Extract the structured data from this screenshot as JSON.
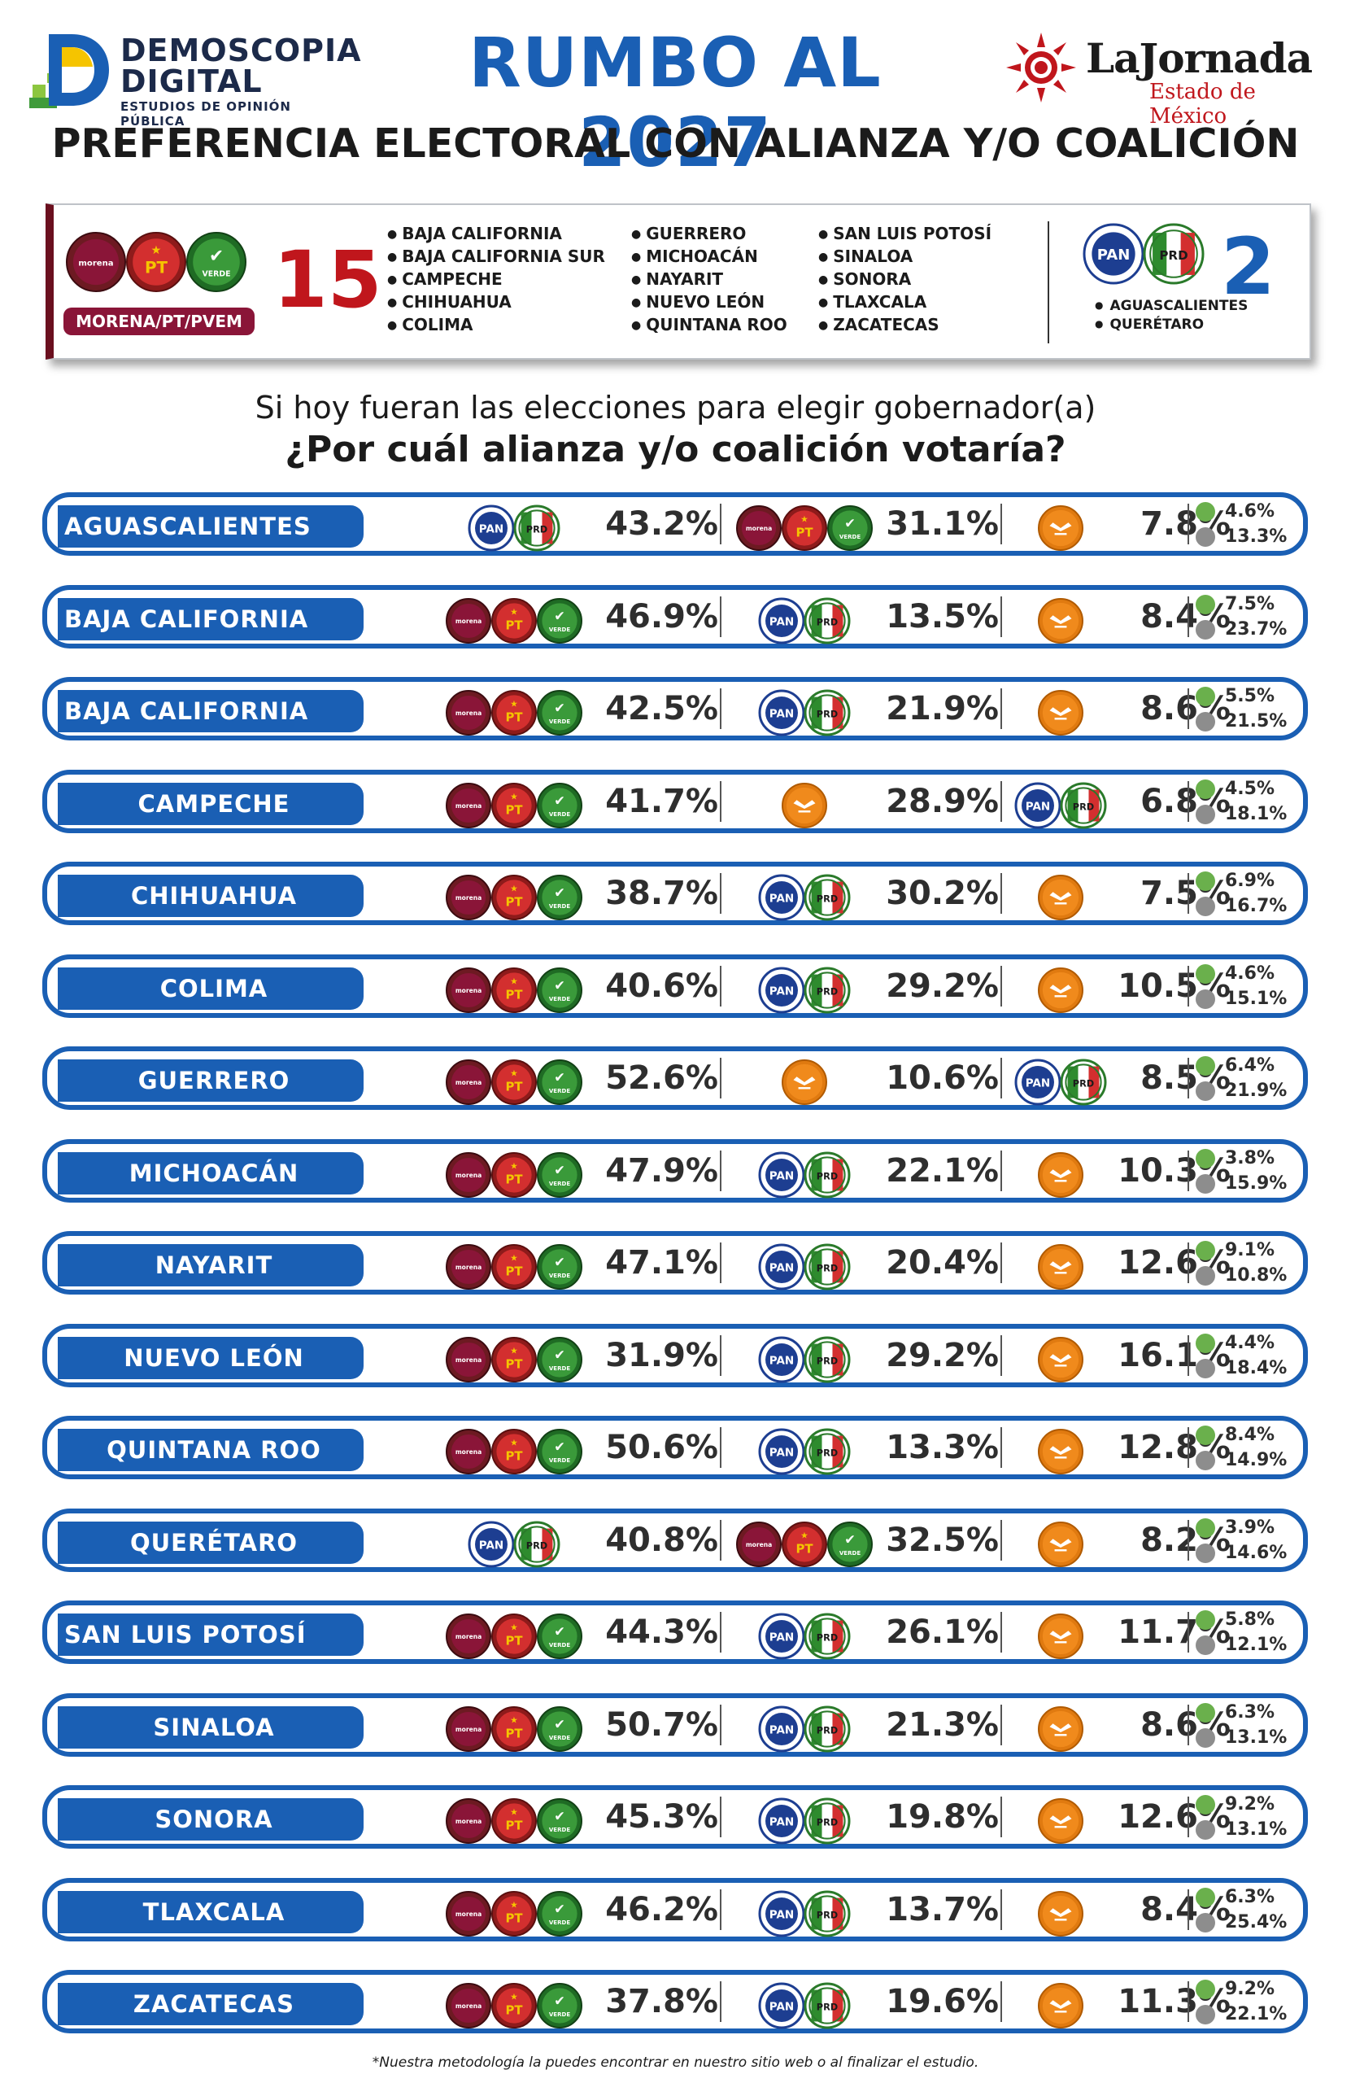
{
  "header": {
    "brand_line1": "DEMOSCOPIA",
    "brand_line2": "DIGITAL",
    "brand_tagline": "ESTUDIOS DE OPINIÓN PÚBLICA",
    "title": "RUMBO AL 2027",
    "partner_name": "LaJornada",
    "partner_sub": "Estado de México",
    "subtitle": "PREFERENCIA ELECTORAL CON ALIANZA Y/O COALICIÓN"
  },
  "summary": {
    "coalition_label": "MORENA/PT/PVEM",
    "coalition_count": "15",
    "coalition_states_col1": [
      "BAJA CALIFORNIA",
      "BAJA CALIFORNIA SUR",
      "CAMPECHE",
      "CHIHUAHUA",
      "COLIMA"
    ],
    "coalition_states_col2": [
      "GUERRERO",
      "MICHOACÁN",
      "NAYARIT",
      "NUEVO LEÓN",
      "QUINTANA ROO"
    ],
    "coalition_states_col3": [
      "SAN LUIS POTOSÍ",
      "SINALOA",
      "SONORA",
      "TLAXCALA",
      "ZACATECAS"
    ],
    "opposition_count": "2",
    "opposition_states": [
      "AGUASCALIENTES",
      "QUERÉTARO"
    ]
  },
  "question": {
    "line1": "Si hoy fueran las elecciones para elegir gobernador(a)",
    "line2": "¿Por cuál alianza y/o coalición votaría?"
  },
  "party_labels": {
    "morena": "morena",
    "pt": "PT",
    "verde": "VERDE",
    "pan": "PAN",
    "prd": "PRD"
  },
  "colors": {
    "accent_blue": "#1a5fb4",
    "morena": "#8a1538",
    "pt": "#d32f2f",
    "verde": "#3a9a3a",
    "mc": "#f08a1c",
    "pan": "#1d3e91",
    "prd_yellow": "#f5c400",
    "pri_red": "#d32f2f"
  },
  "rows": [
    {
      "state": "AGUASCALIENTES",
      "s1": {
        "party": "panpri",
        "pct": "43.2%"
      },
      "s2": {
        "party": "mpv",
        "pct": "31.1%"
      },
      "s3": {
        "party": "mc",
        "pct": "7.8%"
      },
      "other": "4.6%",
      "undecided": "13.3%"
    },
    {
      "state": "BAJA CALIFORNIA",
      "s1": {
        "party": "mpv",
        "pct": "46.9%"
      },
      "s2": {
        "party": "panpri",
        "pct": "13.5%"
      },
      "s3": {
        "party": "mc",
        "pct": "8.4%"
      },
      "other": "7.5%",
      "undecided": "23.7%"
    },
    {
      "state": "BAJA CALIFORNIA SUR",
      "s1": {
        "party": "mpv",
        "pct": "42.5%"
      },
      "s2": {
        "party": "panpri",
        "pct": "21.9%"
      },
      "s3": {
        "party": "mc",
        "pct": "8.6%"
      },
      "other": "5.5%",
      "undecided": "21.5%"
    },
    {
      "state": "CAMPECHE",
      "s1": {
        "party": "mpv",
        "pct": "41.7%"
      },
      "s2": {
        "party": "mc",
        "pct": "28.9%"
      },
      "s3": {
        "party": "panpri",
        "pct": "6.8%"
      },
      "other": "4.5%",
      "undecided": "18.1%"
    },
    {
      "state": "CHIHUAHUA",
      "s1": {
        "party": "mpv",
        "pct": "38.7%"
      },
      "s2": {
        "party": "panpri",
        "pct": "30.2%"
      },
      "s3": {
        "party": "mc",
        "pct": "7.5%"
      },
      "other": "6.9%",
      "undecided": "16.7%"
    },
    {
      "state": "COLIMA",
      "s1": {
        "party": "mpv",
        "pct": "40.6%"
      },
      "s2": {
        "party": "panpri",
        "pct": "29.2%"
      },
      "s3": {
        "party": "mc",
        "pct": "10.5%"
      },
      "other": "4.6%",
      "undecided": "15.1%"
    },
    {
      "state": "GUERRERO",
      "s1": {
        "party": "mpv",
        "pct": "52.6%"
      },
      "s2": {
        "party": "mc",
        "pct": "10.6%"
      },
      "s3": {
        "party": "panpri",
        "pct": "8.5%"
      },
      "other": "6.4%",
      "undecided": "21.9%"
    },
    {
      "state": "MICHOACÁN",
      "s1": {
        "party": "mpv",
        "pct": "47.9%"
      },
      "s2": {
        "party": "panpri",
        "pct": "22.1%"
      },
      "s3": {
        "party": "mc",
        "pct": "10.3%"
      },
      "other": "3.8%",
      "undecided": "15.9%"
    },
    {
      "state": "NAYARIT",
      "s1": {
        "party": "mpv",
        "pct": "47.1%"
      },
      "s2": {
        "party": "panpri",
        "pct": "20.4%"
      },
      "s3": {
        "party": "mc",
        "pct": "12.6%"
      },
      "other": "9.1%",
      "undecided": "10.8%"
    },
    {
      "state": "NUEVO LEÓN",
      "s1": {
        "party": "mpv",
        "pct": "31.9%"
      },
      "s2": {
        "party": "panpri",
        "pct": "29.2%"
      },
      "s3": {
        "party": "mc",
        "pct": "16.1%"
      },
      "other": "4.4%",
      "undecided": "18.4%"
    },
    {
      "state": "QUINTANA ROO",
      "s1": {
        "party": "mpv",
        "pct": "50.6%"
      },
      "s2": {
        "party": "panpri",
        "pct": "13.3%"
      },
      "s3": {
        "party": "mc",
        "pct": "12.8%"
      },
      "other": "8.4%",
      "undecided": "14.9%"
    },
    {
      "state": "QUERÉTARO",
      "s1": {
        "party": "panpri",
        "pct": "40.8%"
      },
      "s2": {
        "party": "mpv",
        "pct": "32.5%"
      },
      "s3": {
        "party": "mc",
        "pct": "8.2%"
      },
      "other": "3.9%",
      "undecided": "14.6%"
    },
    {
      "state": "SAN LUIS POTOSÍ",
      "s1": {
        "party": "mpv",
        "pct": "44.3%"
      },
      "s2": {
        "party": "panpri",
        "pct": "26.1%"
      },
      "s3": {
        "party": "mc",
        "pct": "11.7%"
      },
      "other": "5.8%",
      "undecided": "12.1%"
    },
    {
      "state": "SINALOA",
      "s1": {
        "party": "mpv",
        "pct": "50.7%"
      },
      "s2": {
        "party": "panpri",
        "pct": "21.3%"
      },
      "s3": {
        "party": "mc",
        "pct": "8.6%"
      },
      "other": "6.3%",
      "undecided": "13.1%"
    },
    {
      "state": "SONORA",
      "s1": {
        "party": "mpv",
        "pct": "45.3%"
      },
      "s2": {
        "party": "panpri",
        "pct": "19.8%"
      },
      "s3": {
        "party": "mc",
        "pct": "12.6%"
      },
      "other": "9.2%",
      "undecided": "13.1%"
    },
    {
      "state": "TLAXCALA",
      "s1": {
        "party": "mpv",
        "pct": "46.2%"
      },
      "s2": {
        "party": "panpri",
        "pct": "13.7%"
      },
      "s3": {
        "party": "mc",
        "pct": "8.4%"
      },
      "other": "6.3%",
      "undecided": "25.4%"
    },
    {
      "state": "ZACATECAS",
      "s1": {
        "party": "mpv",
        "pct": "37.8%"
      },
      "s2": {
        "party": "panpri",
        "pct": "19.6%"
      },
      "s3": {
        "party": "mc",
        "pct": "11.3%"
      },
      "other": "9.2%",
      "undecided": "22.1%"
    }
  ],
  "footnote": "*Nuestra metodología la puedes encontrar en nuestro sitio web o al finalizar el estudio."
}
